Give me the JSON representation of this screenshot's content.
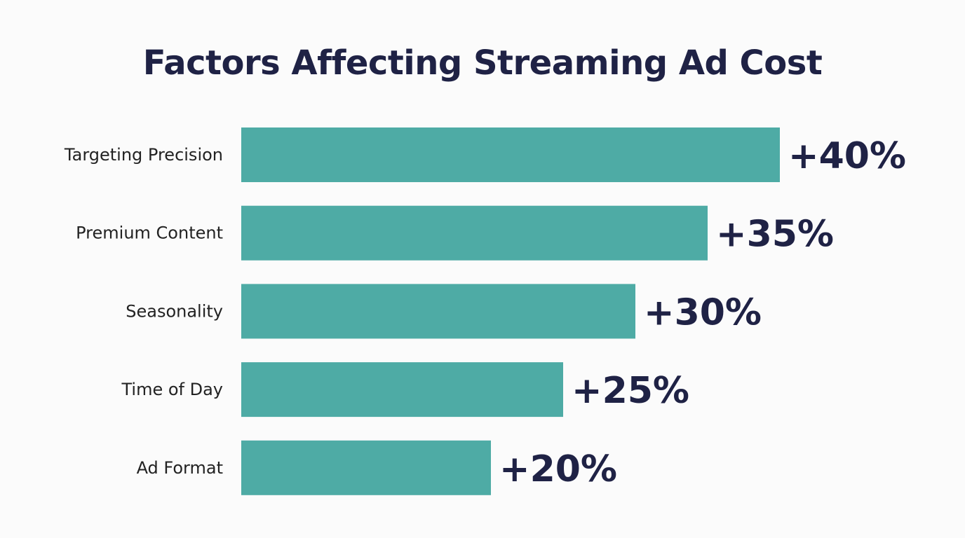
{
  "chart_data": {
    "type": "bar",
    "orientation": "horizontal",
    "title": "Factors Affecting Streaming Ad Cost",
    "categories": [
      "Targeting Precision",
      "Premium Content",
      "Seasonality",
      "Time of Day",
      "Ad Format"
    ],
    "values": [
      40,
      35,
      30,
      25,
      20
    ],
    "data_labels": [
      "+40%",
      "+35%",
      "+30%",
      "+25%",
      "+20%"
    ],
    "xlabel": "",
    "ylabel": "",
    "grid": false,
    "legend": "none",
    "colors": {
      "bar": "#4eaba5",
      "text": "#1f2245",
      "background": "#fbfbfb"
    }
  }
}
